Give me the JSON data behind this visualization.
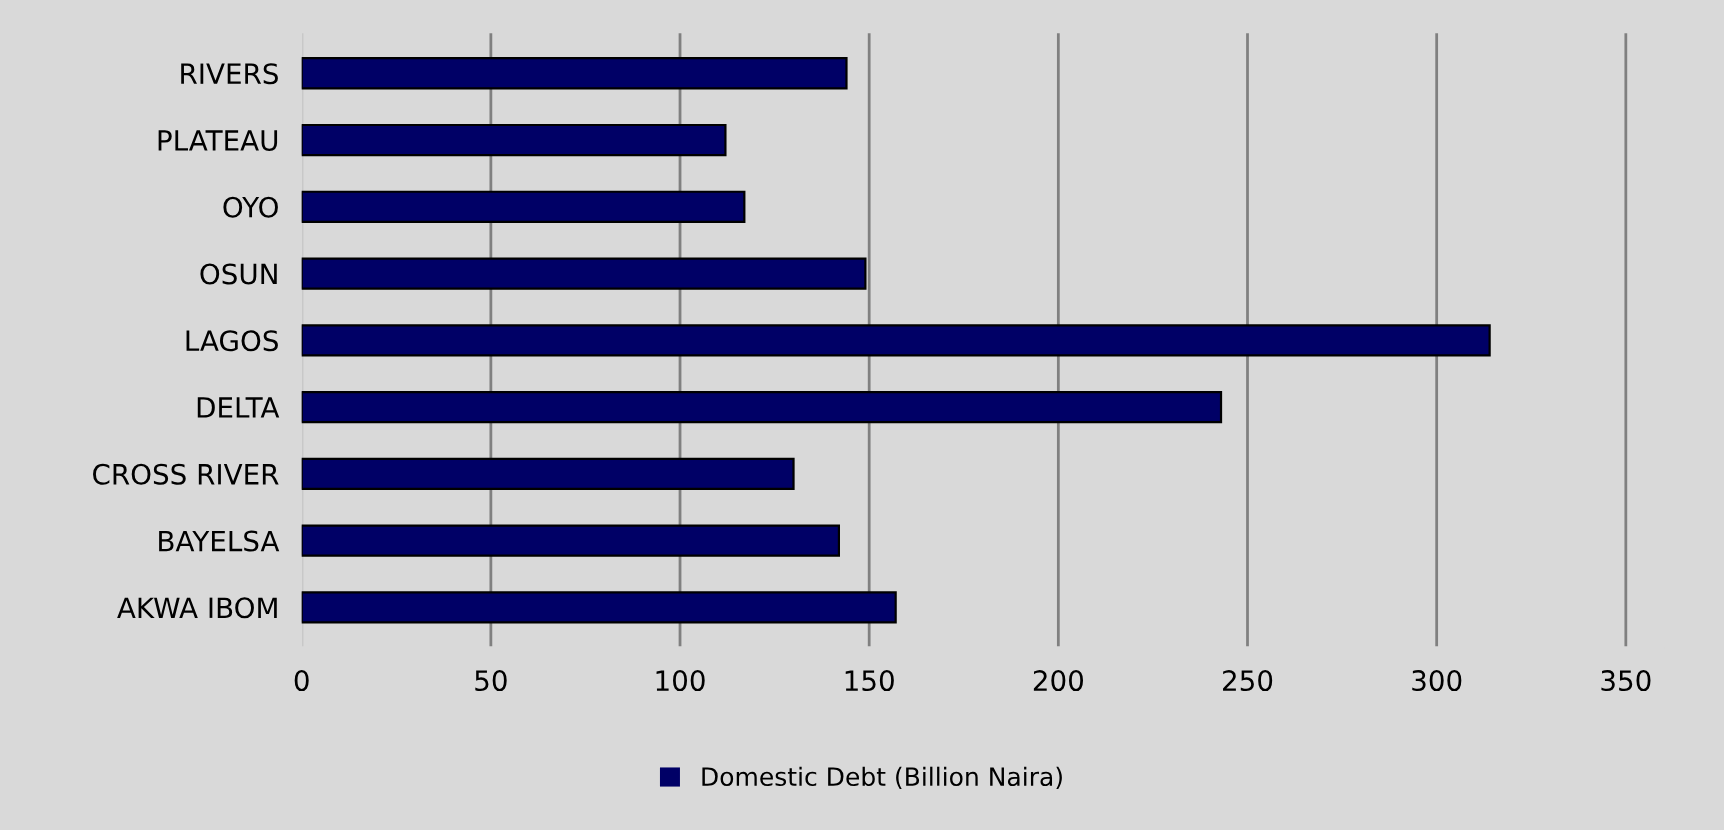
{
  "chart_data": {
    "type": "bar",
    "orientation": "horizontal",
    "categories": [
      "RIVERS",
      "PLATEAU",
      "OYO",
      "OSUN",
      "LAGOS",
      "DELTA",
      "CROSS RIVER",
      "BAYELSA",
      "AKWA IBOM"
    ],
    "series": [
      {
        "name": "Domestic Debt (Billion Naira)",
        "color": "#000066",
        "values": [
          144,
          112,
          117,
          149,
          314,
          243,
          130,
          142,
          157
        ]
      }
    ],
    "xlim": [
      0,
      360
    ],
    "xticks": [
      0,
      50,
      100,
      150,
      200,
      250,
      300,
      350
    ],
    "grid": "x",
    "legend": "bottom"
  }
}
